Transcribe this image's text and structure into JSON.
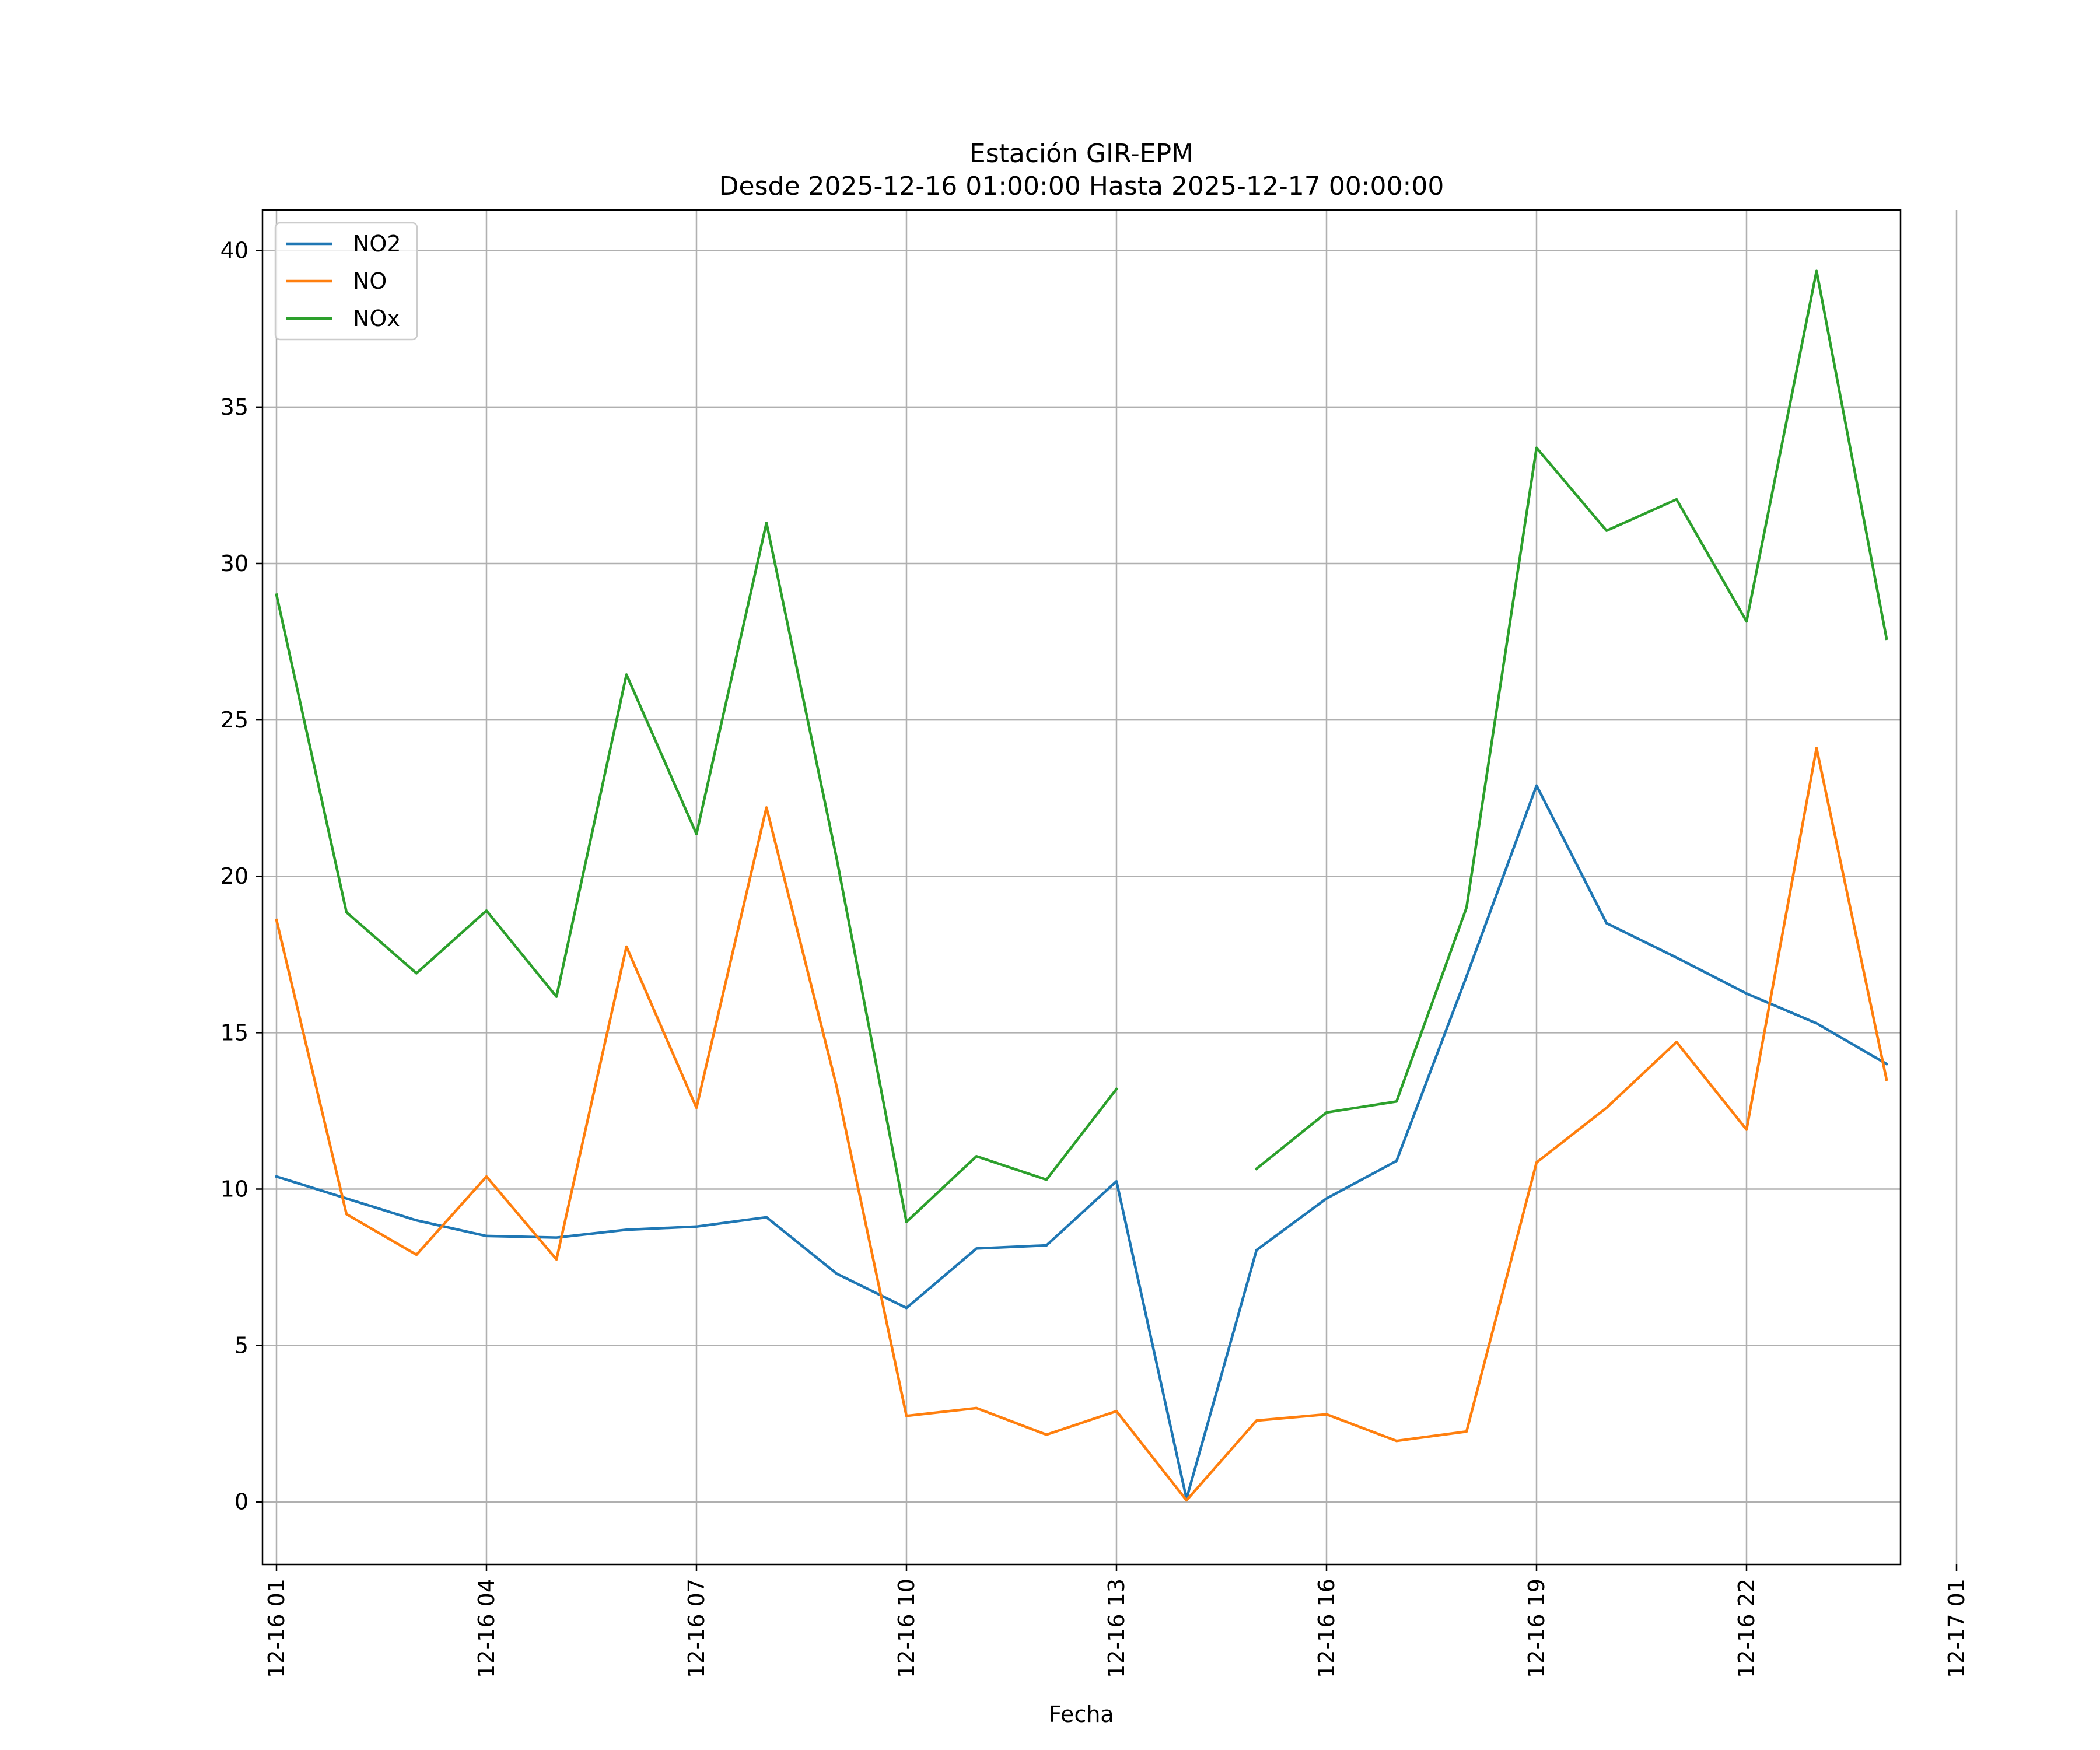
{
  "chart_data": {
    "type": "line",
    "title": "Estación GIR-EPM",
    "subtitle": "Desde 2025-12-16 01:00:00 Hasta 2025-12-17 00:00:00",
    "xlabel": "Fecha",
    "ylabel": "",
    "grid": true,
    "legend_position": "top-left",
    "xlim": [
      0.8,
      24.2
    ],
    "ylim": [
      -2,
      41.3
    ],
    "y_ticks": [
      0,
      5,
      10,
      15,
      20,
      25,
      30,
      35,
      40
    ],
    "y_tick_labels": [
      "0",
      "5",
      "10",
      "15",
      "20",
      "25",
      "30",
      "35",
      "40"
    ],
    "x_ticks": [
      1,
      4,
      7,
      10,
      13,
      16,
      19,
      22,
      25
    ],
    "x_tick_labels": [
      "12-16 01",
      "12-16 04",
      "12-16 07",
      "12-16 10",
      "12-16 13",
      "12-16 16",
      "12-16 19",
      "12-16 22",
      "12-17 01"
    ],
    "x": [
      1,
      2,
      3,
      4,
      5,
      6,
      7,
      8,
      9,
      10,
      11,
      12,
      13,
      14,
      15,
      16,
      17,
      18,
      19,
      20,
      21,
      22,
      23,
      24
    ],
    "series": [
      {
        "name": "NO2",
        "color": "#1f77b4",
        "values": [
          10.4,
          9.7,
          9.0,
          8.5,
          8.45,
          8.7,
          8.8,
          9.1,
          7.3,
          6.2,
          8.1,
          8.2,
          10.25,
          0.1,
          8.05,
          9.7,
          10.9,
          16.8,
          22.9,
          18.5,
          17.4,
          16.25,
          15.3,
          14.0
        ]
      },
      {
        "name": "NO",
        "color": "#ff7f0e",
        "values": [
          18.6,
          9.2,
          7.9,
          10.4,
          7.75,
          17.75,
          12.6,
          22.2,
          13.3,
          2.75,
          3.0,
          2.15,
          2.9,
          0.05,
          2.6,
          2.8,
          1.95,
          2.25,
          10.85,
          12.6,
          14.7,
          11.9,
          24.1,
          13.5
        ]
      },
      {
        "name": "NOx",
        "color": "#2ca02c",
        "values": [
          29.0,
          18.85,
          16.9,
          18.9,
          16.15,
          26.45,
          21.35,
          31.3,
          20.6,
          8.95,
          11.05,
          10.3,
          13.2,
          null,
          10.65,
          12.45,
          12.8,
          19.0,
          33.7,
          31.05,
          32.05,
          28.15,
          39.35,
          27.6
        ]
      }
    ]
  }
}
